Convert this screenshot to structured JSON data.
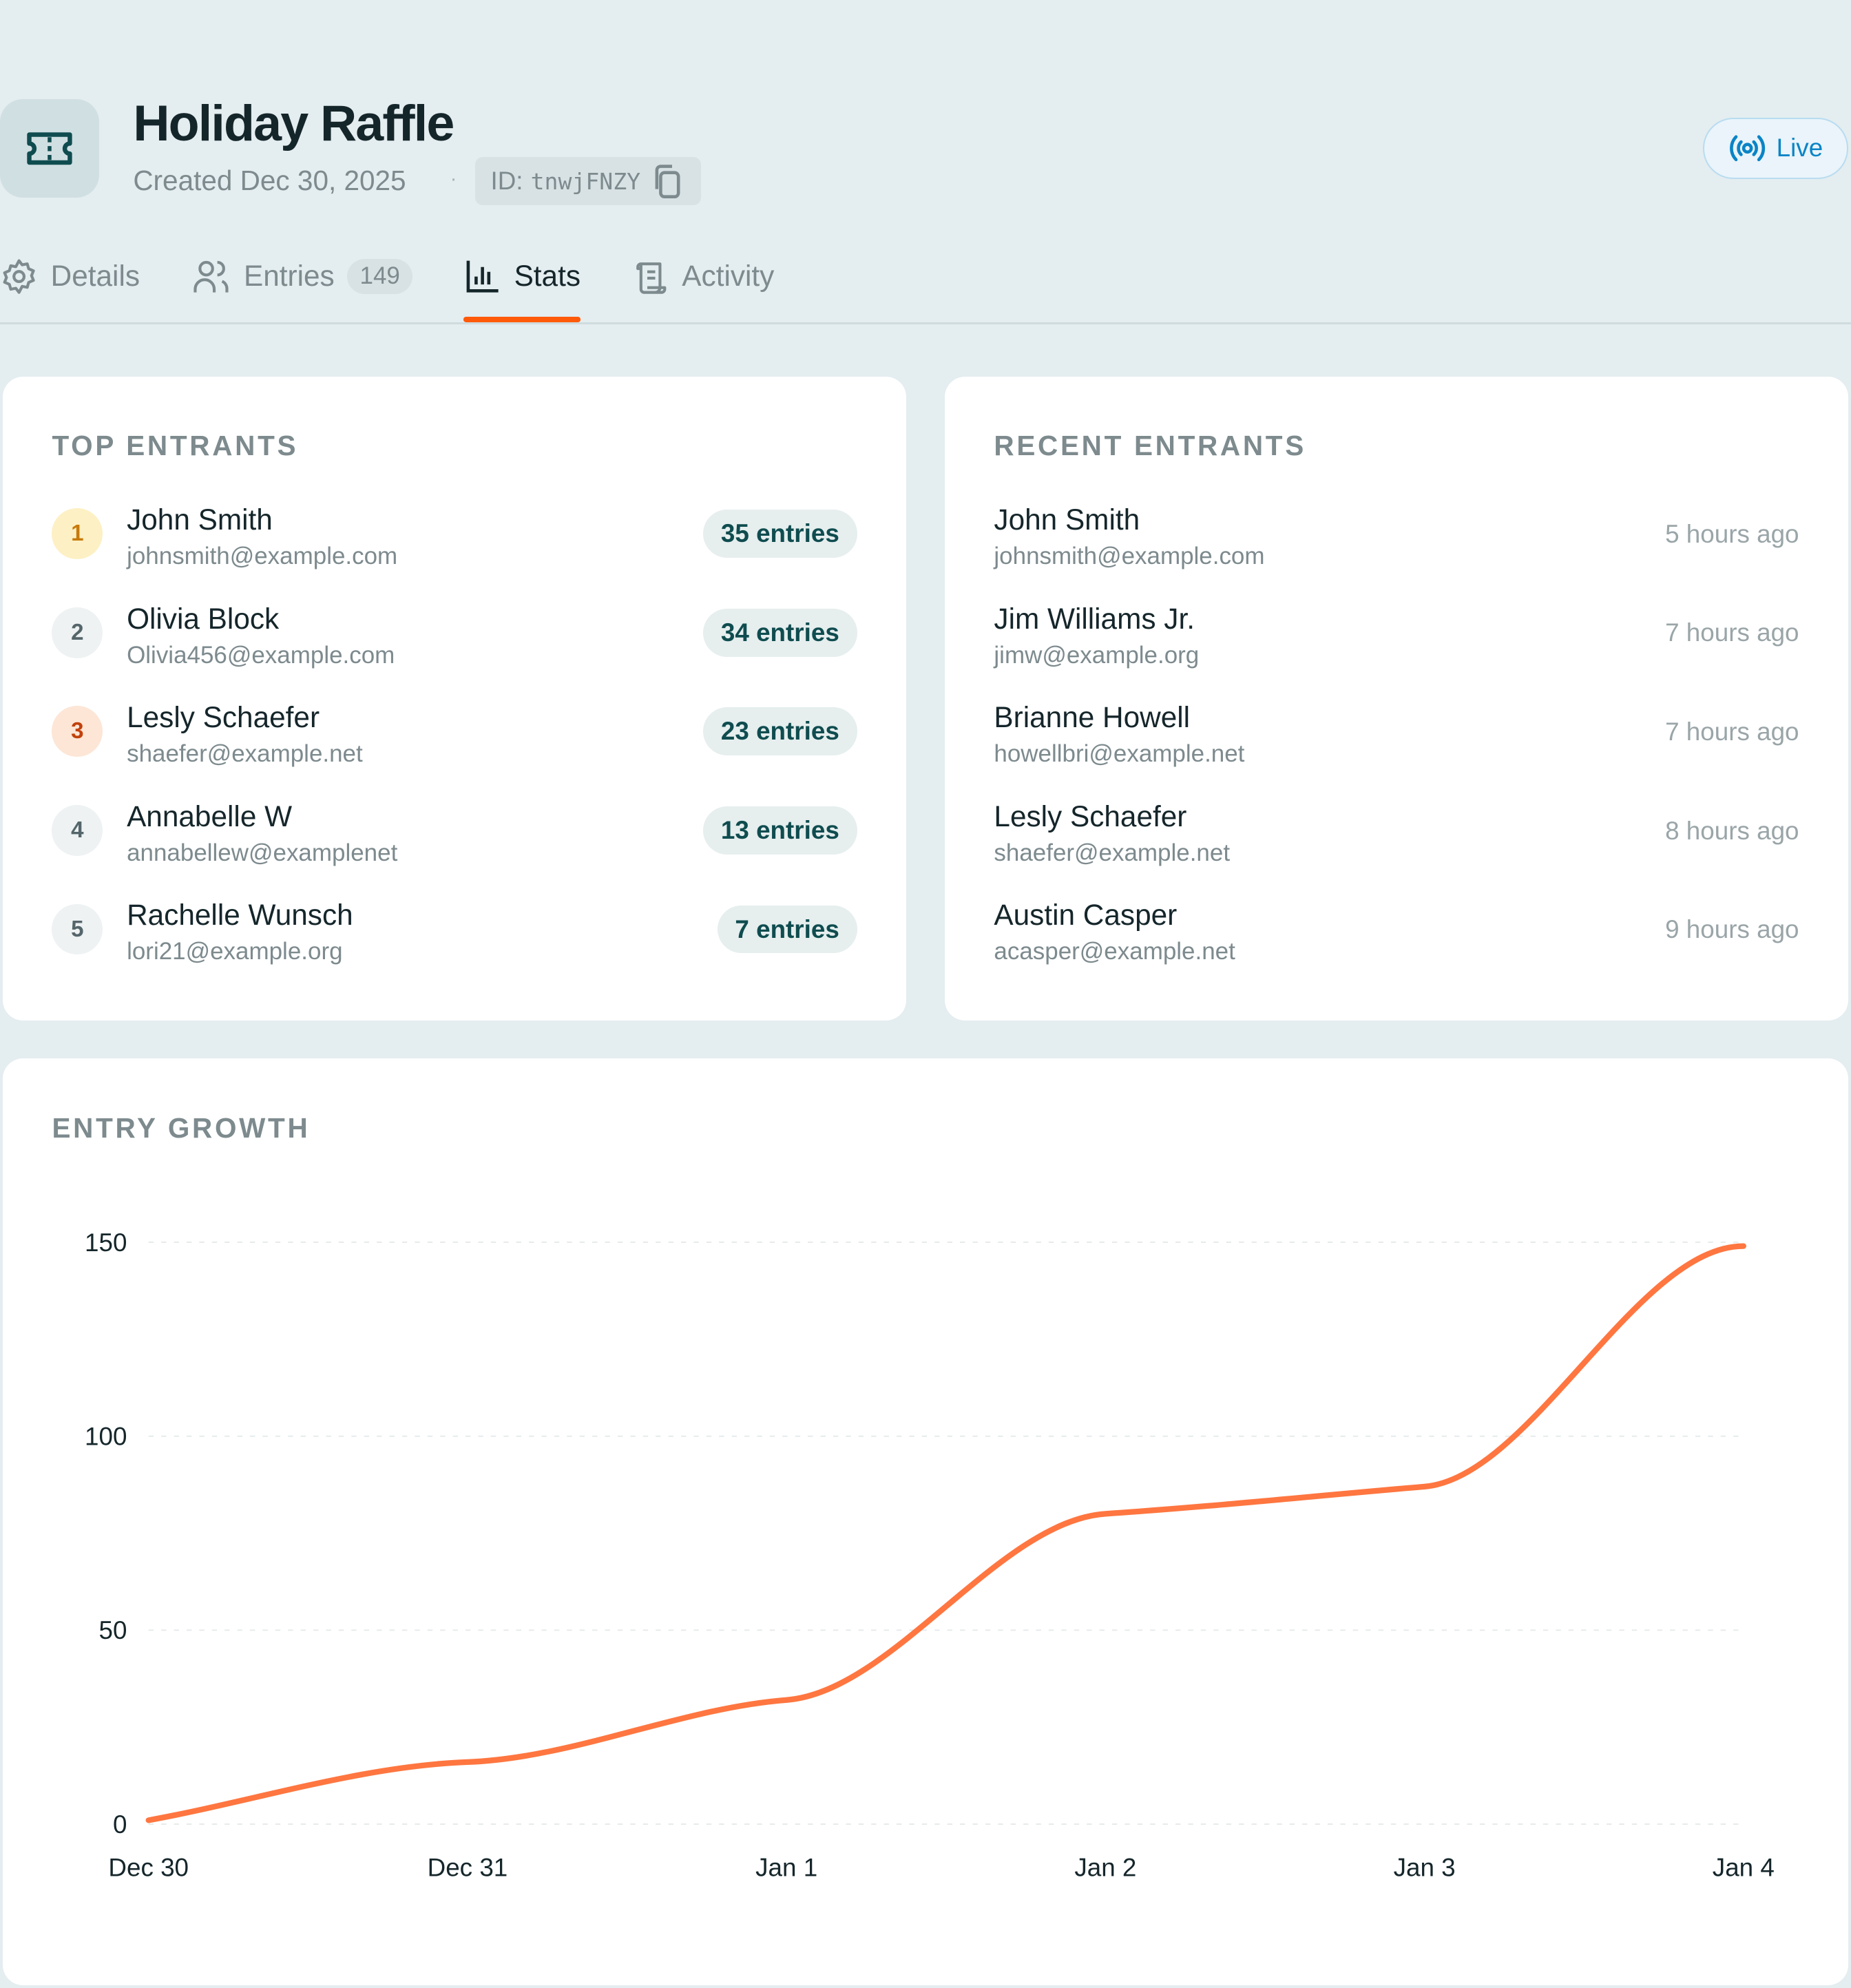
{
  "header": {
    "title": "Holiday Raffle",
    "created": "Created Dec 30, 2025",
    "separator": "·",
    "id_label": "ID:",
    "id_value": "tnwjFNZY",
    "live_label": "Live",
    "icon": "ticket-icon"
  },
  "tabs": [
    {
      "label": "Details",
      "icon": "gear-icon"
    },
    {
      "label": "Entries",
      "icon": "users-icon",
      "count": "149"
    },
    {
      "label": "Stats",
      "icon": "bar-chart-icon",
      "active": true
    },
    {
      "label": "Activity",
      "icon": "scroll-icon"
    }
  ],
  "top_entrants": {
    "title": "TOP ENTRANTS",
    "items": [
      {
        "rank": "1",
        "name": "John Smith",
        "email": "johnsmith@example.com",
        "entries": "35 entries"
      },
      {
        "rank": "2",
        "name": "Olivia Block",
        "email": "Olivia456@example.com",
        "entries": "34 entries"
      },
      {
        "rank": "3",
        "name": "Lesly Schaefer",
        "email": "shaefer@example.net",
        "entries": "23 entries"
      },
      {
        "rank": "4",
        "name": "Annabelle W",
        "email": "annabellew@examplenet",
        "entries": "13 entries"
      },
      {
        "rank": "5",
        "name": "Rachelle Wunsch",
        "email": "lori21@example.org",
        "entries": "7 entries"
      }
    ]
  },
  "recent_entrants": {
    "title": "RECENT ENTRANTS",
    "items": [
      {
        "name": "John Smith",
        "email": "johnsmith@example.com",
        "time": "5 hours ago"
      },
      {
        "name": "Jim Williams Jr.",
        "email": "jimw@example.org",
        "time": "7 hours ago"
      },
      {
        "name": "Brianne Howell",
        "email": "howellbri@example.net",
        "time": "7 hours ago"
      },
      {
        "name": "Lesly Schaefer",
        "email": "shaefer@example.net",
        "time": "8 hours ago"
      },
      {
        "name": "Austin Casper",
        "email": "acasper@example.net",
        "time": "9 hours ago"
      }
    ]
  },
  "colors": {
    "accent": "#ff5a0a",
    "line": "#ff7640",
    "brand": "#0f4c4f",
    "live": "#0a84c6"
  },
  "chart_data": {
    "type": "line",
    "title": "ENTRY GROWTH",
    "categories": [
      "Dec 30",
      "Dec 31",
      "Jan 1",
      "Jan 2",
      "Jan 3",
      "Jan 4"
    ],
    "series": [
      {
        "values": [
          1,
          16,
          32,
          80,
          87,
          149
        ]
      }
    ],
    "ylim": [
      0,
      150
    ],
    "yticks": [
      "0",
      "50",
      "100",
      "150"
    ],
    "grid": true,
    "xlabel": "",
    "ylabel": ""
  }
}
